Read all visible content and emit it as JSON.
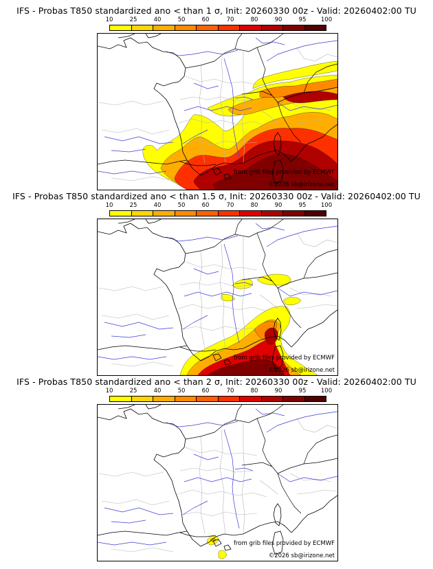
{
  "colors": {
    "levels": [
      "#ffff00",
      "#ffd700",
      "#ffae00",
      "#ff8a00",
      "#ff6000",
      "#ff3000",
      "#e00000",
      "#b00000",
      "#800000",
      "#500000"
    ],
    "country_border": "#000000",
    "region_border": "#b4b4b4",
    "river": "#3b3bd6"
  },
  "scale_labels": [
    "10",
    "25",
    "40",
    "50",
    "60",
    "70",
    "80",
    "90",
    "95",
    "100"
  ],
  "panels": [
    {
      "title": "IFS - Probas T850  standardized ano < than 1 σ, Init: 20260330 00z - Valid: 20260402:00 TU",
      "credit_source": "from grib files provided by ECMWF",
      "credit_copyright": "©2026 sb@irizone.net",
      "coverage": "wide"
    },
    {
      "title": "IFS - Probas T850  standardized ano < than 1.5 σ, Init: 20260330 00z - Valid: 20260402:00 TU",
      "credit_source": "from grib files provided by ECMWF",
      "credit_copyright": "©2026 sb@irizone.net",
      "coverage": "medium"
    },
    {
      "title": "IFS - Probas T850  standardized ano < than 2 σ, Init: 20260330 00z - Valid: 20260402:00 TU",
      "credit_source": "from grib files provided by ECMWF",
      "credit_copyright": "©2026 sb@irizone.net",
      "coverage": "small"
    }
  ]
}
